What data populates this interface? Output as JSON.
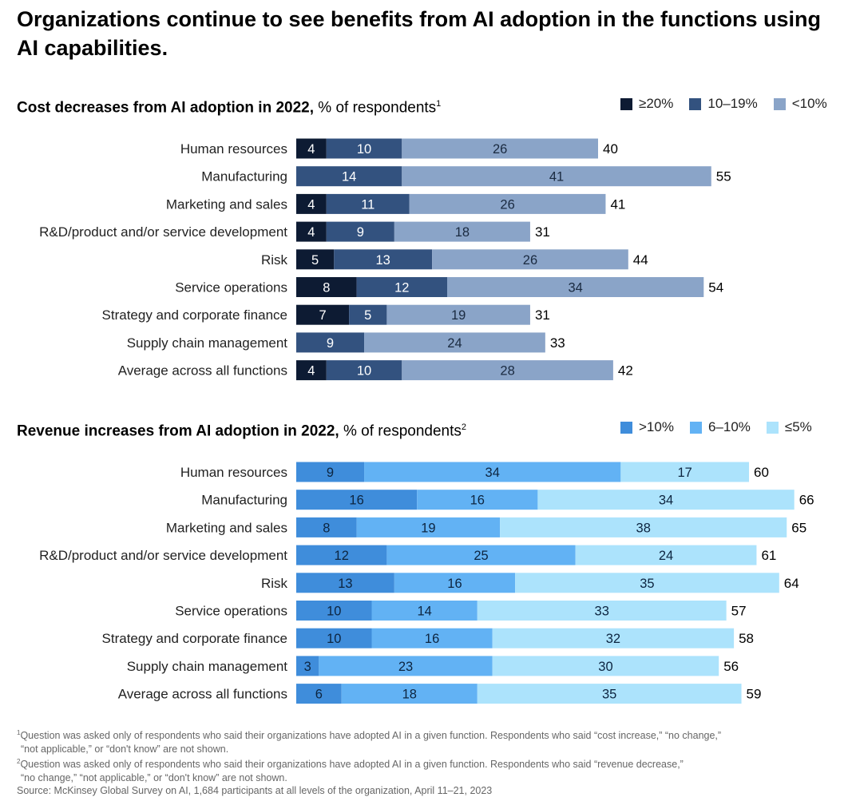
{
  "title": "Organizations continue to see benefits from AI adoption in the functions using AI capabilities.",
  "chart_data": [
    {
      "type": "bar",
      "orientation": "horizontal",
      "stacked": true,
      "title": "Cost decreases from AI adoption in 2022,",
      "subtitle": "% of respondents",
      "footnote_mark": "1",
      "categories": [
        "Human resources",
        "Manufacturing",
        "Marketing and sales",
        "R&D/product and/or service development",
        "Risk",
        "Service operations",
        "Strategy and corporate finance",
        "Supply chain management",
        "Average across all functions"
      ],
      "series": [
        {
          "name": "≥20%",
          "color": "#0d1b33",
          "label_color": "#ffffff",
          "values": [
            4,
            0,
            4,
            4,
            5,
            8,
            7,
            0,
            4
          ]
        },
        {
          "name": "10–19%",
          "color": "#33527f",
          "label_color": "#ffffff",
          "values": [
            10,
            14,
            11,
            9,
            13,
            12,
            5,
            9,
            10
          ]
        },
        {
          "name": "<10%",
          "color": "#8aa4c8",
          "label_color": "#1a2a40",
          "values": [
            26,
            41,
            26,
            18,
            26,
            34,
            19,
            24,
            28
          ]
        }
      ],
      "totals": [
        40,
        55,
        41,
        31,
        44,
        54,
        31,
        33,
        42
      ],
      "xlim": [
        0,
        66
      ],
      "legend": "top-right"
    },
    {
      "type": "bar",
      "orientation": "horizontal",
      "stacked": true,
      "title": "Revenue increases from AI adoption in 2022,",
      "subtitle": "% of respondents",
      "footnote_mark": "2",
      "categories": [
        "Human resources",
        "Manufacturing",
        "Marketing and sales",
        "R&D/product and/or service development",
        "Risk",
        "Service operations",
        "Strategy and corporate finance",
        "Supply chain management",
        "Average across all functions"
      ],
      "series": [
        {
          "name": ">10%",
          "color": "#3f8ddb",
          "label_color": "#0d2540",
          "values": [
            9,
            16,
            8,
            12,
            13,
            10,
            10,
            3,
            6
          ]
        },
        {
          "name": "6–10%",
          "color": "#62b2f4",
          "label_color": "#0d2540",
          "values": [
            34,
            16,
            19,
            25,
            16,
            14,
            16,
            23,
            18
          ]
        },
        {
          "name": "≤5%",
          "color": "#ace3fc",
          "label_color": "#0d2540",
          "values": [
            17,
            34,
            38,
            24,
            35,
            33,
            32,
            30,
            35
          ]
        }
      ],
      "totals": [
        60,
        66,
        65,
        61,
        64,
        57,
        58,
        56,
        59
      ],
      "xlim": [
        0,
        66
      ],
      "legend": "top-right"
    }
  ],
  "footnotes": {
    "note1_mark": "1",
    "note1_line1": "Question was asked only of respondents who said their organizations have adopted AI in a given function. Respondents who said “cost increase,” “no change,”",
    "note1_line2": "“not applicable,” or “don't know” are not shown.",
    "note2_mark": "2",
    "note2_line1": "Question was asked only of respondents who said their organizations have adopted AI in a given function. Respondents who said “revenue decrease,”",
    "note2_line2": "“no change,” “not applicable,” or “don't know” are not shown.",
    "source": "Source: McKinsey Global Survey on AI, 1,684 participants at all levels of the organization, April 11–21, 2023"
  }
}
